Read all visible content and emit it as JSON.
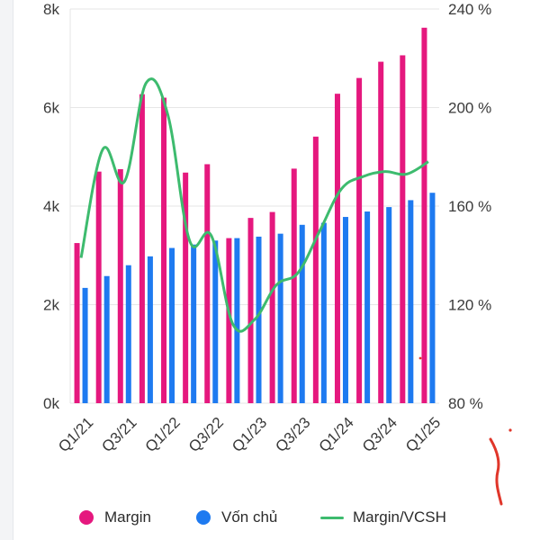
{
  "colors": {
    "margin": "#e5187e",
    "von_chu": "#1e7af0",
    "ratio": "#3dbb6e",
    "grid": "#e6e6e6",
    "annotation": "#e0362a"
  },
  "legend": {
    "margin": "Margin",
    "von_chu": "Vốn chủ",
    "ratio": "Margin/VCSH"
  },
  "chart_data": {
    "type": "bar",
    "categories": [
      "Q1/21",
      "Q2/21",
      "Q3/21",
      "Q4/21",
      "Q1/22",
      "Q2/22",
      "Q3/22",
      "Q4/22",
      "Q1/23",
      "Q2/23",
      "Q3/23",
      "Q4/23",
      "Q1/24",
      "Q2/24",
      "Q3/24",
      "Q4/24",
      "Q1/25"
    ],
    "x_tick_labels": [
      "Q1/21",
      "Q3/21",
      "Q1/22",
      "Q3/22",
      "Q1/23",
      "Q3/23",
      "Q1/24",
      "Q3/24",
      "Q1/25"
    ],
    "left_axis": {
      "ylim": [
        0,
        8000
      ],
      "ticks": [
        0,
        2000,
        4000,
        6000,
        8000
      ],
      "tick_labels": [
        "0k",
        "2k",
        "4k",
        "6k",
        "8k"
      ]
    },
    "right_axis": {
      "ylim": [
        80,
        240
      ],
      "ticks": [
        80,
        120,
        160,
        200,
        240
      ],
      "tick_labels": [
        "80 %",
        "120 %",
        "160 %",
        "200 %",
        "240 %"
      ]
    },
    "grid": true,
    "legend_position": "bottom",
    "series": [
      {
        "name": "Margin",
        "axis": "left",
        "kind": "bar",
        "values": [
          3250,
          4700,
          4750,
          6270,
          6200,
          4680,
          4850,
          3350,
          3760,
          3880,
          4760,
          5410,
          6280,
          6600,
          6930,
          7060,
          7620
        ]
      },
      {
        "name": "Vốn chủ",
        "axis": "left",
        "kind": "bar",
        "values": [
          2340,
          2580,
          2800,
          2980,
          3150,
          3220,
          3300,
          3350,
          3380,
          3440,
          3620,
          3660,
          3780,
          3890,
          3980,
          4120,
          4270
        ]
      },
      {
        "name": "Margin/VCSH",
        "axis": "right",
        "kind": "line",
        "values": [
          139,
          183,
          170,
          210,
          197,
          146,
          148,
          112,
          114,
          128,
          133,
          150,
          167,
          172,
          174,
          173,
          178
        ]
      }
    ]
  }
}
